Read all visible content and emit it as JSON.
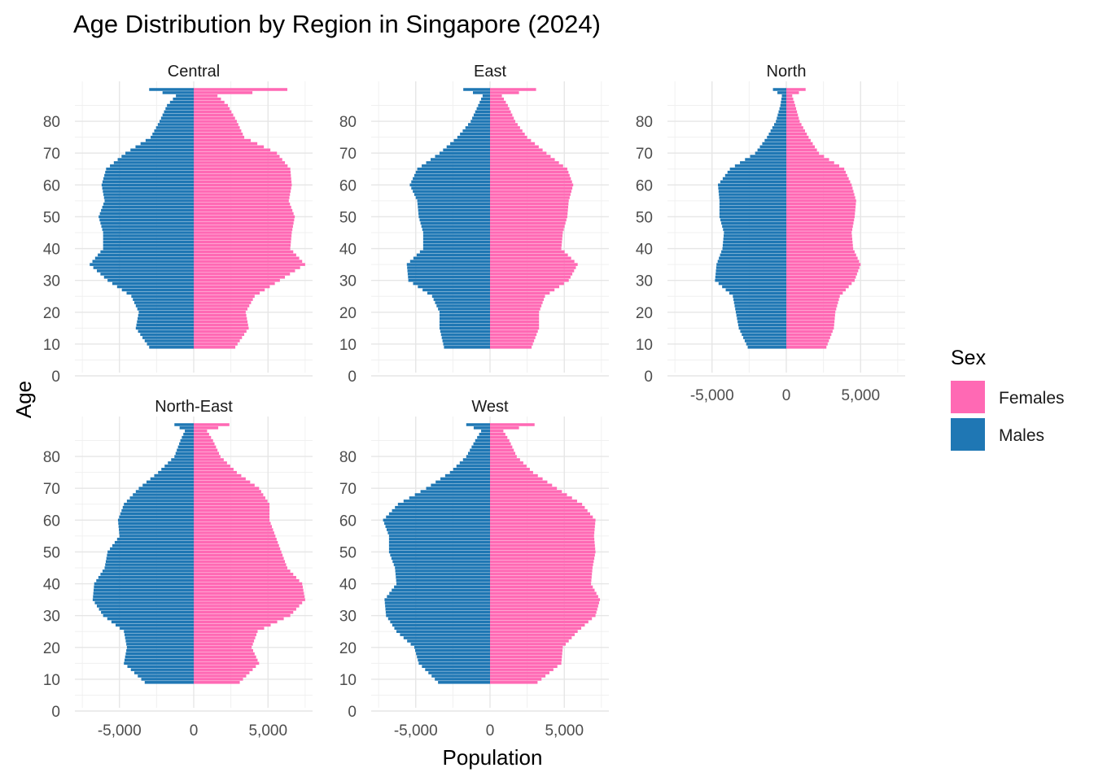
{
  "chart_data": {
    "type": "bar",
    "title": "Age Distribution by Region in Singapore (2024)",
    "xlabel": "Population",
    "ylabel": "Age",
    "xlim": [
      -8000,
      8000
    ],
    "x_ticks": [
      -5000,
      0,
      5000
    ],
    "x_tick_labels": [
      "-5,000",
      "0",
      "5,000"
    ],
    "y_ticks": [
      0,
      10,
      20,
      30,
      40,
      50,
      60,
      70,
      80
    ],
    "y_tick_labels": [
      "0",
      "10",
      "20",
      "30",
      "40",
      "50",
      "60",
      "70",
      "80"
    ],
    "legend": {
      "title": "Sex",
      "position": "right",
      "entries": [
        {
          "label": "Females",
          "color": "#FF69B4"
        },
        {
          "label": "Males",
          "color": "#1F77B4"
        }
      ]
    },
    "grid": true,
    "age_range": [
      9,
      90
    ],
    "facets": [
      {
        "name": "Central",
        "females": [
          [
            9,
            2800
          ],
          [
            15,
            3700
          ],
          [
            20,
            3500
          ],
          [
            25,
            4100
          ],
          [
            30,
            5800
          ],
          [
            35,
            7500
          ],
          [
            40,
            6500
          ],
          [
            45,
            6600
          ],
          [
            50,
            6800
          ],
          [
            55,
            6400
          ],
          [
            60,
            6600
          ],
          [
            65,
            6500
          ],
          [
            70,
            5600
          ],
          [
            75,
            3400
          ],
          [
            80,
            2900
          ],
          [
            85,
            2300
          ],
          [
            88,
            1600
          ],
          [
            90,
            6300
          ]
        ],
        "males": [
          [
            9,
            -3000
          ],
          [
            15,
            -3900
          ],
          [
            20,
            -3700
          ],
          [
            25,
            -4200
          ],
          [
            30,
            -5800
          ],
          [
            35,
            -7000
          ],
          [
            40,
            -6100
          ],
          [
            45,
            -6100
          ],
          [
            50,
            -6400
          ],
          [
            55,
            -6000
          ],
          [
            60,
            -6200
          ],
          [
            65,
            -5900
          ],
          [
            70,
            -4600
          ],
          [
            75,
            -2900
          ],
          [
            80,
            -2300
          ],
          [
            85,
            -1800
          ],
          [
            88,
            -1200
          ],
          [
            90,
            -3000
          ]
        ]
      },
      {
        "name": "East",
        "females": [
          [
            9,
            2800
          ],
          [
            15,
            3300
          ],
          [
            20,
            3300
          ],
          [
            25,
            3700
          ],
          [
            30,
            5300
          ],
          [
            35,
            5900
          ],
          [
            40,
            4800
          ],
          [
            45,
            4900
          ],
          [
            50,
            5200
          ],
          [
            55,
            5300
          ],
          [
            60,
            5600
          ],
          [
            65,
            5200
          ],
          [
            70,
            3800
          ],
          [
            75,
            2500
          ],
          [
            80,
            1700
          ],
          [
            85,
            1200
          ],
          [
            88,
            800
          ],
          [
            90,
            3100
          ]
        ],
        "males": [
          [
            9,
            -3100
          ],
          [
            15,
            -3400
          ],
          [
            20,
            -3400
          ],
          [
            25,
            -3900
          ],
          [
            30,
            -5500
          ],
          [
            35,
            -5600
          ],
          [
            40,
            -4500
          ],
          [
            45,
            -4500
          ],
          [
            50,
            -4800
          ],
          [
            55,
            -4900
          ],
          [
            60,
            -5400
          ],
          [
            65,
            -4900
          ],
          [
            70,
            -3400
          ],
          [
            75,
            -2200
          ],
          [
            80,
            -1300
          ],
          [
            85,
            -800
          ],
          [
            88,
            -500
          ],
          [
            90,
            -1800
          ]
        ]
      },
      {
        "name": "North",
        "females": [
          [
            9,
            2700
          ],
          [
            15,
            3200
          ],
          [
            20,
            3300
          ],
          [
            25,
            3600
          ],
          [
            30,
            4600
          ],
          [
            35,
            5000
          ],
          [
            40,
            4500
          ],
          [
            45,
            4400
          ],
          [
            50,
            4600
          ],
          [
            55,
            4700
          ],
          [
            60,
            4400
          ],
          [
            65,
            3900
          ],
          [
            70,
            2200
          ],
          [
            75,
            1500
          ],
          [
            80,
            900
          ],
          [
            85,
            600
          ],
          [
            88,
            400
          ],
          [
            90,
            1300
          ]
        ],
        "males": [
          [
            9,
            -2600
          ],
          [
            15,
            -3200
          ],
          [
            20,
            -3400
          ],
          [
            25,
            -3600
          ],
          [
            30,
            -4800
          ],
          [
            35,
            -4700
          ],
          [
            40,
            -4300
          ],
          [
            45,
            -4200
          ],
          [
            50,
            -4500
          ],
          [
            55,
            -4500
          ],
          [
            60,
            -4600
          ],
          [
            65,
            -3800
          ],
          [
            70,
            -2100
          ],
          [
            75,
            -1300
          ],
          [
            80,
            -700
          ],
          [
            85,
            -400
          ],
          [
            88,
            -300
          ],
          [
            90,
            -900
          ]
        ]
      },
      {
        "name": "North-East",
        "females": [
          [
            9,
            3100
          ],
          [
            15,
            4400
          ],
          [
            20,
            3900
          ],
          [
            25,
            4300
          ],
          [
            30,
            6500
          ],
          [
            35,
            7500
          ],
          [
            40,
            7300
          ],
          [
            45,
            6300
          ],
          [
            50,
            5900
          ],
          [
            55,
            5500
          ],
          [
            60,
            5100
          ],
          [
            65,
            5100
          ],
          [
            70,
            4400
          ],
          [
            75,
            2900
          ],
          [
            80,
            1800
          ],
          [
            85,
            1300
          ],
          [
            88,
            900
          ],
          [
            90,
            2400
          ]
        ],
        "males": [
          [
            9,
            -3300
          ],
          [
            15,
            -4700
          ],
          [
            20,
            -4500
          ],
          [
            25,
            -4700
          ],
          [
            30,
            -6100
          ],
          [
            35,
            -6800
          ],
          [
            40,
            -6700
          ],
          [
            45,
            -6000
          ],
          [
            50,
            -5800
          ],
          [
            55,
            -5000
          ],
          [
            60,
            -5100
          ],
          [
            65,
            -4700
          ],
          [
            70,
            -3700
          ],
          [
            75,
            -2400
          ],
          [
            80,
            -1300
          ],
          [
            85,
            -900
          ],
          [
            88,
            -600
          ],
          [
            90,
            -1300
          ]
        ]
      },
      {
        "name": "West",
        "females": [
          [
            9,
            3200
          ],
          [
            15,
            4800
          ],
          [
            20,
            4900
          ],
          [
            25,
            5900
          ],
          [
            30,
            7100
          ],
          [
            35,
            7400
          ],
          [
            40,
            6800
          ],
          [
            45,
            6900
          ],
          [
            50,
            7100
          ],
          [
            55,
            7000
          ],
          [
            60,
            7100
          ],
          [
            65,
            6200
          ],
          [
            70,
            4500
          ],
          [
            75,
            2900
          ],
          [
            80,
            1800
          ],
          [
            85,
            1300
          ],
          [
            88,
            900
          ],
          [
            90,
            3000
          ]
        ],
        "males": [
          [
            9,
            -3500
          ],
          [
            15,
            -4800
          ],
          [
            20,
            -5100
          ],
          [
            25,
            -6300
          ],
          [
            30,
            -7000
          ],
          [
            35,
            -7100
          ],
          [
            40,
            -6300
          ],
          [
            45,
            -6400
          ],
          [
            50,
            -6800
          ],
          [
            55,
            -6800
          ],
          [
            60,
            -7200
          ],
          [
            65,
            -6200
          ],
          [
            70,
            -4300
          ],
          [
            75,
            -2700
          ],
          [
            80,
            -1600
          ],
          [
            85,
            -1000
          ],
          [
            88,
            -600
          ],
          [
            90,
            -1600
          ]
        ]
      }
    ]
  }
}
